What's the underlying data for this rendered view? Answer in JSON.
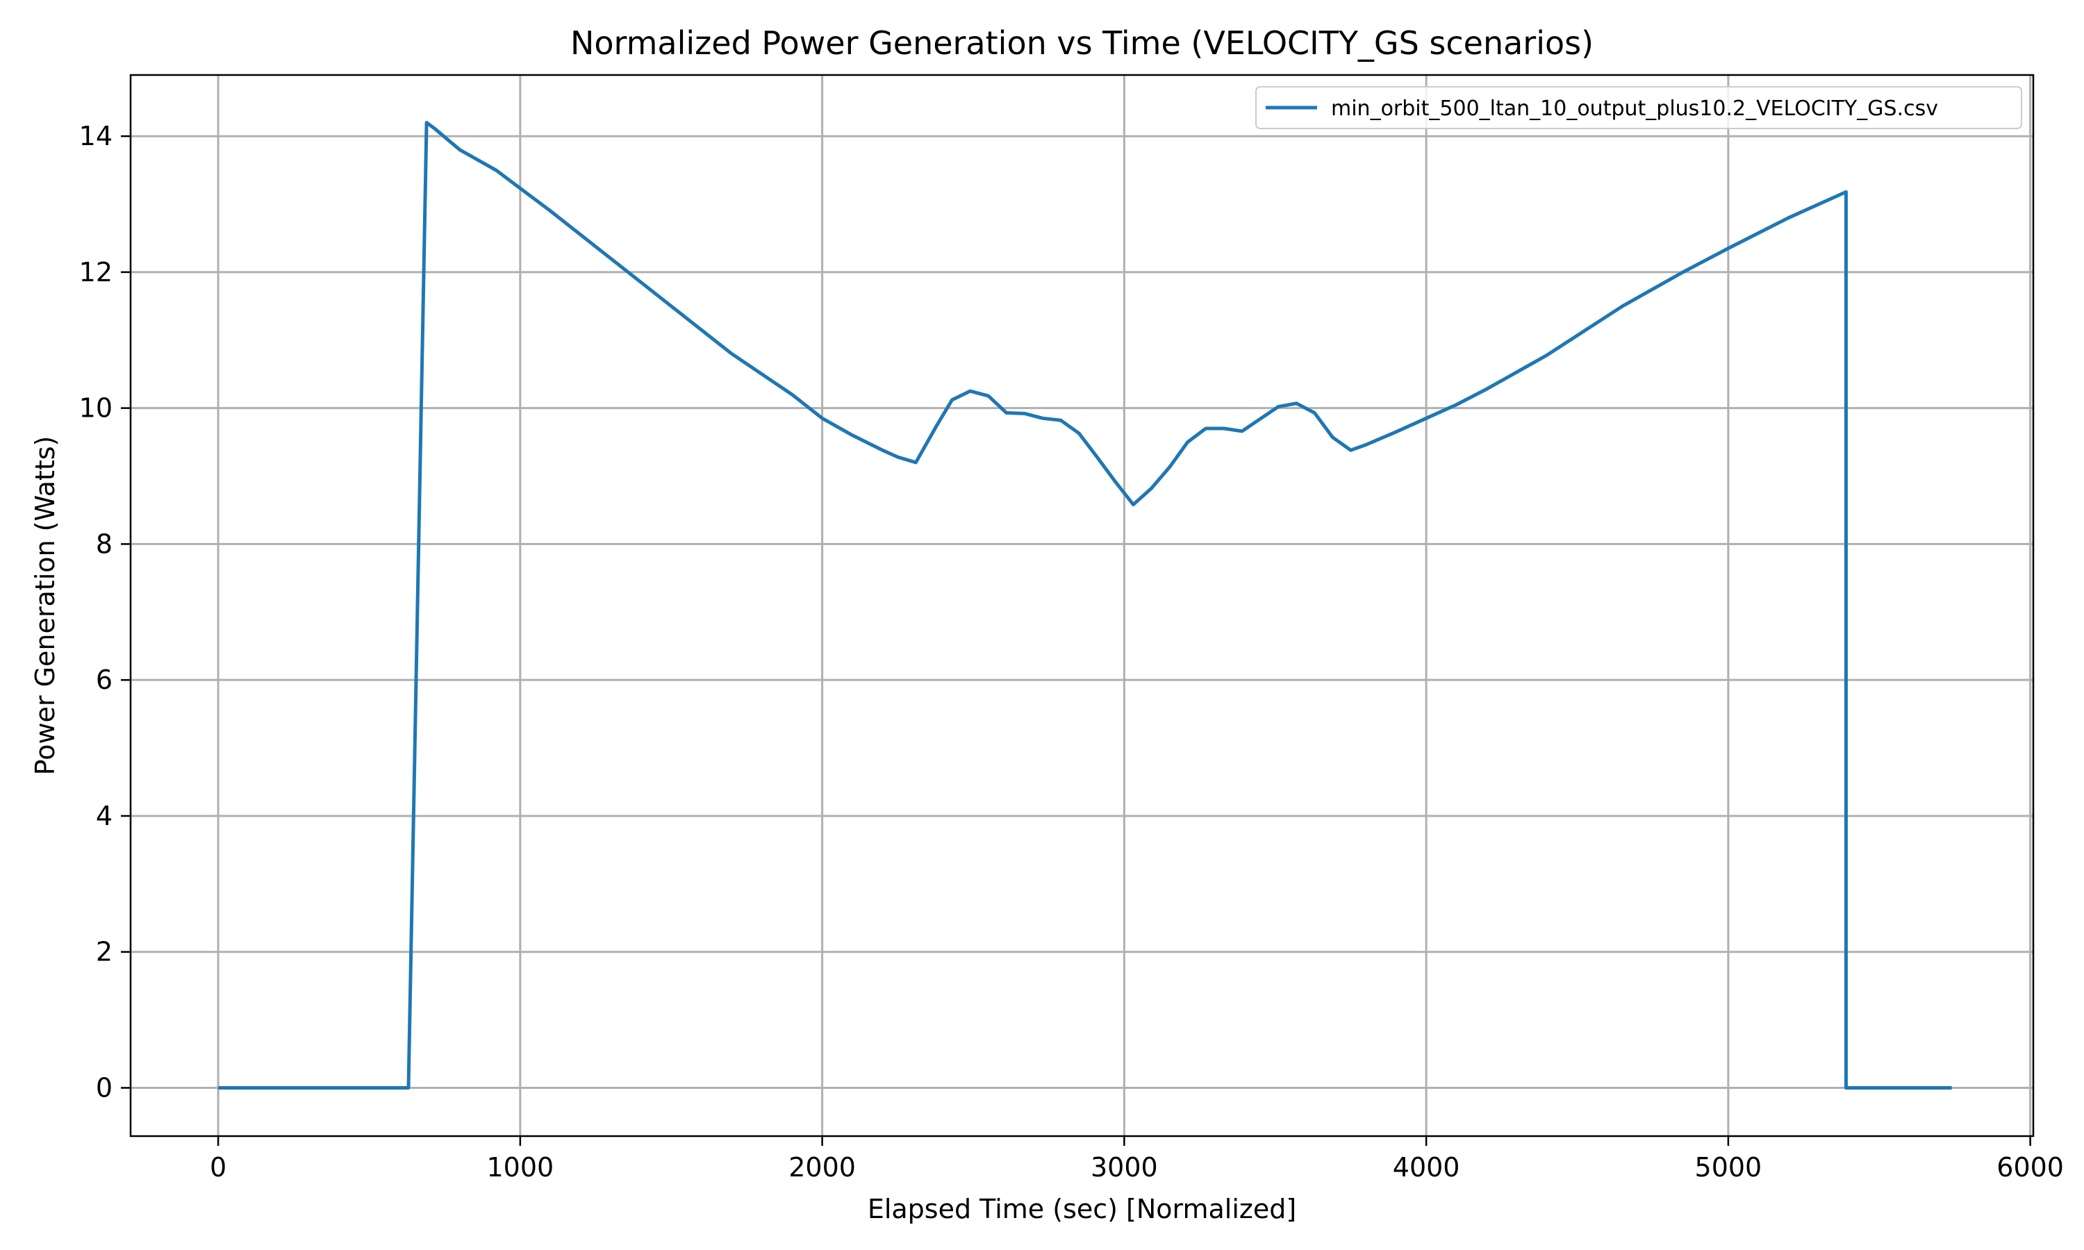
{
  "chart_data": {
    "type": "line",
    "title": "Normalized Power Generation vs Time (VELOCITY_GS scenarios)",
    "xlabel": "Elapsed Time (sec) [Normalized]",
    "ylabel": "Power Generation (Watts)",
    "xlim": [
      -290,
      6010
    ],
    "ylim": [
      -0.71,
      14.9
    ],
    "xticks": [
      0,
      1000,
      2000,
      3000,
      4000,
      5000,
      6000
    ],
    "yticks": [
      0,
      2,
      4,
      6,
      8,
      10,
      12,
      14
    ],
    "grid": true,
    "legend_position": "top-right",
    "colors": {
      "series": "#1f77b4",
      "grid": "#b0b0b0"
    },
    "series": [
      {
        "name": "min_orbit_500_ltan_10_output_plus10.2_VELOCITY_GS.csv",
        "x": [
          0,
          630,
          690,
          720,
          800,
          920,
          1100,
          1300,
          1500,
          1700,
          1900,
          2000,
          2100,
          2200,
          2250,
          2310,
          2380,
          2430,
          2490,
          2550,
          2610,
          2670,
          2730,
          2790,
          2850,
          2910,
          2970,
          3030,
          3090,
          3150,
          3210,
          3270,
          3330,
          3390,
          3450,
          3510,
          3570,
          3630,
          3690,
          3750,
          3800,
          3900,
          4000,
          4100,
          4200,
          4400,
          4650,
          4850,
          5000,
          5200,
          5390,
          5390,
          5740
        ],
        "y": [
          0,
          0,
          14.2,
          14.1,
          13.8,
          13.5,
          12.9,
          12.2,
          11.5,
          10.8,
          10.2,
          9.85,
          9.6,
          9.38,
          9.28,
          9.2,
          9.75,
          10.12,
          10.25,
          10.18,
          9.93,
          9.92,
          9.85,
          9.82,
          9.63,
          9.28,
          8.92,
          8.58,
          8.82,
          9.13,
          9.5,
          9.7,
          9.7,
          9.66,
          9.84,
          10.02,
          10.07,
          9.93,
          9.57,
          9.38,
          9.46,
          9.65,
          9.85,
          10.05,
          10.28,
          10.78,
          11.5,
          12.0,
          12.35,
          12.8,
          13.18,
          0,
          0
        ]
      }
    ]
  }
}
